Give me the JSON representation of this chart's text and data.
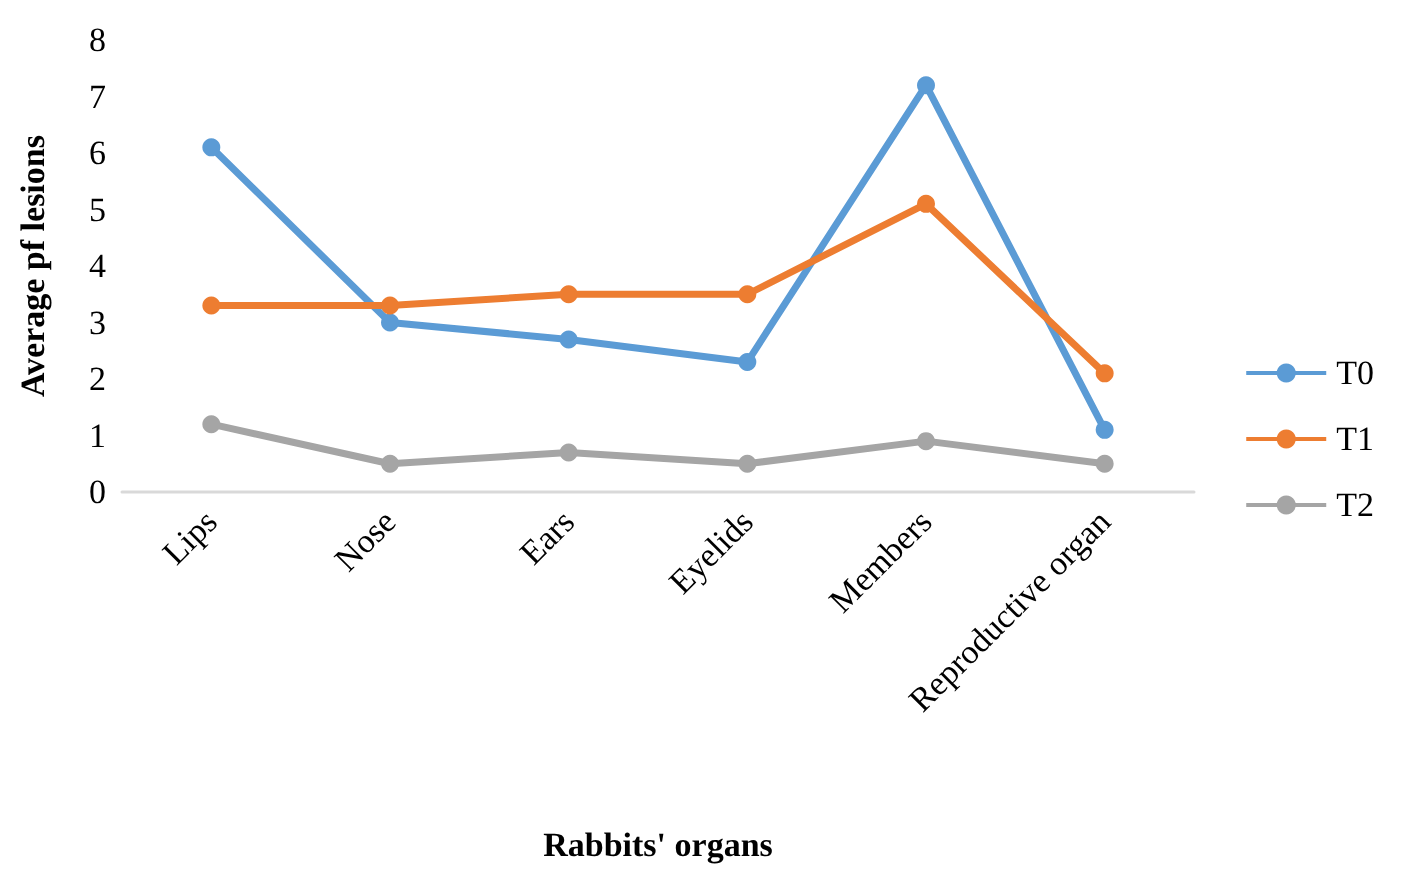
{
  "chart_data": {
    "type": "line",
    "xlabel": "Rabbits' organs",
    "ylabel": "Average pf lesions",
    "categories": [
      "Lips",
      "Nose",
      "Ears",
      "Eyelids",
      "Members",
      "Reproductive organ"
    ],
    "series": [
      {
        "name": "T0",
        "color": "#5b9bd5",
        "values": [
          6.1,
          3.0,
          2.7,
          2.3,
          7.2,
          1.1
        ]
      },
      {
        "name": "T1",
        "color": "#ed7d31",
        "values": [
          3.3,
          3.3,
          3.5,
          3.5,
          5.1,
          2.1
        ]
      },
      {
        "name": "T2",
        "color": "#a5a5a5",
        "values": [
          1.2,
          0.5,
          0.7,
          0.5,
          0.9,
          0.5
        ]
      }
    ],
    "ylim": [
      0,
      8
    ],
    "yticks": [
      0,
      1,
      2,
      3,
      4,
      5,
      6,
      7,
      8
    ],
    "grid": false,
    "legend": "right",
    "marker": "circle",
    "line_style": "solid"
  }
}
